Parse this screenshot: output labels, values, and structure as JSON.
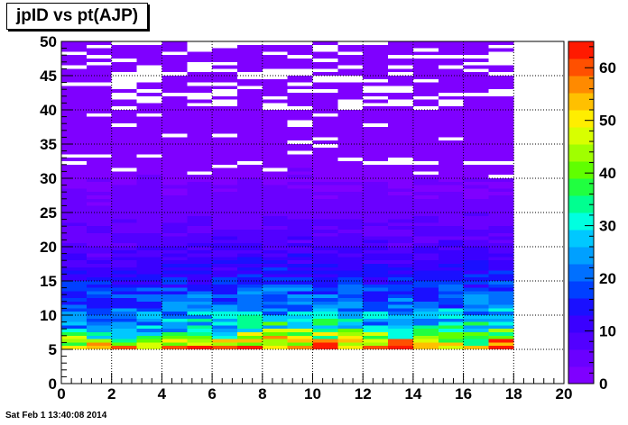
{
  "chart_data": {
    "type": "heatmap",
    "title": "jpID vs pt(AJP)",
    "xlabel": "",
    "ylabel": "",
    "xlim": [
      0,
      20
    ],
    "ylim": [
      0,
      50
    ],
    "zlim": [
      0,
      65
    ],
    "x_ticks": [
      "0",
      "2",
      "4",
      "6",
      "8",
      "10",
      "12",
      "14",
      "16",
      "18",
      "20"
    ],
    "y_ticks": [
      "0",
      "5",
      "10",
      "15",
      "20",
      "25",
      "30",
      "35",
      "40",
      "45",
      "50"
    ],
    "z_ticks": [
      "0",
      "10",
      "20",
      "30",
      "40",
      "50",
      "60"
    ],
    "grid": true,
    "colorbar_position": "right",
    "x_bins": [
      0,
      1,
      2,
      3,
      4,
      5,
      6,
      7,
      8,
      9,
      10,
      11,
      12,
      13,
      14,
      15,
      16,
      17,
      18
    ],
    "y_bins": [
      5,
      5.5,
      6,
      6.5,
      7,
      7.5,
      8,
      8.5,
      9,
      9.5,
      10,
      10.5,
      11,
      11.5,
      12,
      12.5,
      13,
      13.5,
      14,
      14.5,
      15,
      15.5,
      16,
      16.5,
      17,
      17.5,
      18,
      18.5,
      19,
      19.5,
      20,
      20.5,
      21,
      21.5,
      22,
      22.5,
      23,
      23.5,
      24,
      24.5,
      25,
      25.5,
      26,
      26.5,
      27,
      27.5,
      28,
      28.5,
      29,
      29.5,
      30,
      30.5,
      31,
      31.5,
      32,
      32.5,
      33,
      33.5,
      34,
      34.5,
      35,
      35.5,
      36,
      36.5,
      37,
      37.5,
      38,
      38.5,
      39,
      39.5,
      40,
      40.5,
      41,
      41.5,
      42,
      42.5,
      43,
      43.5,
      44,
      44.5,
      45,
      45.5,
      46,
      46.5,
      47,
      47.5,
      48,
      48.5,
      49,
      49.5,
      50
    ],
    "y_profile_by_column": [
      [
        46,
        40,
        33,
        24,
        22,
        20,
        18,
        17,
        16,
        15
      ],
      [
        48,
        41,
        33,
        23,
        21,
        19,
        18,
        17,
        16,
        15
      ],
      [
        52,
        42,
        34,
        25,
        23,
        21,
        19,
        18,
        16,
        15
      ],
      [
        54,
        44,
        35,
        26,
        24,
        22,
        20,
        18,
        17,
        16
      ],
      [
        56,
        46,
        36,
        27,
        25,
        23,
        21,
        19,
        17,
        16
      ],
      [
        58,
        47,
        37,
        28,
        26,
        24,
        21,
        20,
        18,
        17
      ],
      [
        60,
        48,
        38,
        30,
        27,
        25,
        22,
        20,
        18,
        17
      ],
      [
        62,
        50,
        40,
        33,
        29,
        26,
        23,
        21,
        19,
        18
      ],
      [
        64,
        52,
        42,
        35,
        30,
        27,
        24,
        22,
        20,
        18
      ],
      [
        64,
        52,
        42,
        34,
        30,
        27,
        24,
        22,
        20,
        18
      ],
      [
        60,
        50,
        40,
        32,
        28,
        25,
        23,
        21,
        19,
        17
      ],
      [
        58,
        48,
        38,
        30,
        27,
        24,
        22,
        20,
        18,
        17
      ],
      [
        56,
        46,
        37,
        29,
        26,
        24,
        22,
        20,
        18,
        16
      ],
      [
        56,
        46,
        36,
        28,
        25,
        23,
        21,
        19,
        17,
        16
      ],
      [
        62,
        46,
        37,
        28,
        26,
        24,
        22,
        20,
        18,
        16
      ],
      [
        54,
        45,
        36,
        29,
        26,
        24,
        22,
        20,
        18,
        17
      ],
      [
        54,
        45,
        37,
        30,
        27,
        25,
        23,
        21,
        19,
        17
      ],
      [
        62,
        50,
        40,
        31,
        28,
        25,
        23,
        21,
        19,
        17
      ]
    ],
    "y_profile_rows_note": "profile values are counts at y = 5, 6, 7, 8, 9, 10, 11, 12, 13, 14"
  },
  "footer": {
    "timestamp": "Sat Feb  1 13:40:08 2014"
  },
  "colors": {
    "palette": [
      "#7f00ff",
      "#6a00ff",
      "#5200ff",
      "#3a00ff",
      "#1a10ff",
      "#0040ff",
      "#0070ff",
      "#00a0ff",
      "#00c8ff",
      "#00ffe0",
      "#00ff90",
      "#20ff40",
      "#60ff00",
      "#a0ff00",
      "#d8ff00",
      "#ffee00",
      "#ffc000",
      "#ff8a00",
      "#ff5000",
      "#ff1a00"
    ],
    "grid": "#000000",
    "frame": "#000000"
  }
}
